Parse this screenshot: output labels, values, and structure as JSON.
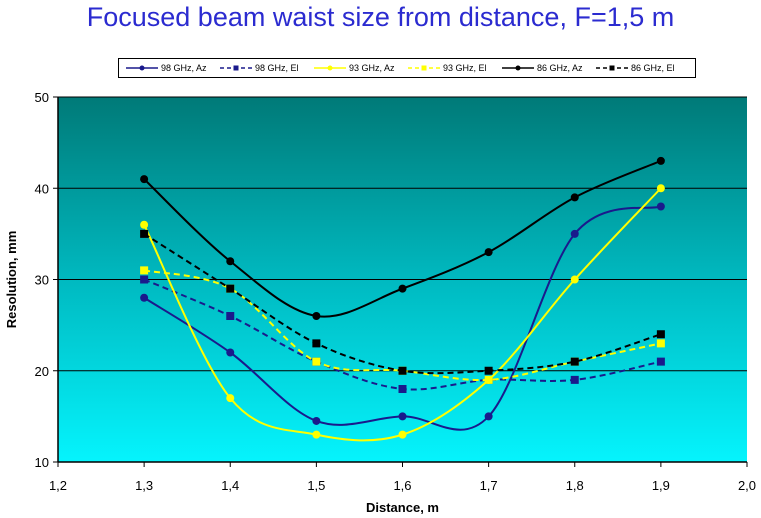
{
  "chart_data": {
    "type": "line",
    "title": "Focused beam waist size from distance, F=1,5 m",
    "xlabel": "Distance, m",
    "ylabel": "Resolution, mm",
    "xlim": [
      1.2,
      2.0
    ],
    "ylim": [
      10,
      50
    ],
    "x_ticks": [
      "1,2",
      "1,3",
      "1,4",
      "1,5",
      "1,6",
      "1,7",
      "1,8",
      "1,9",
      "2,0"
    ],
    "y_ticks": [
      "10",
      "20",
      "30",
      "40",
      "50"
    ],
    "x": [
      1.3,
      1.4,
      1.5,
      1.6,
      1.7,
      1.8,
      1.9
    ],
    "grid": "horizontal",
    "legend_position": "top",
    "background": "gradient teal to cyan",
    "series": [
      {
        "name": "98 GHz, Az",
        "color": "#1a1a8c",
        "dash": "solid",
        "marker": "circle",
        "values": [
          28,
          22,
          14.5,
          15,
          15,
          35,
          38
        ]
      },
      {
        "name": "98 GHz, El",
        "color": "#1a1a8c",
        "dash": "dashed",
        "marker": "square",
        "values": [
          30,
          26,
          21,
          18,
          19,
          19,
          21
        ]
      },
      {
        "name": "93 GHz, Az",
        "color": "#ffff00",
        "dash": "solid",
        "marker": "circle",
        "values": [
          36,
          17,
          13,
          13,
          19,
          30,
          40
        ]
      },
      {
        "name": "93 GHz, El",
        "color": "#ffff00",
        "dash": "dashed",
        "marker": "square",
        "values": [
          31,
          29,
          21,
          20,
          19,
          21,
          23
        ]
      },
      {
        "name": "86 GHz, Az",
        "color": "#000000",
        "dash": "solid",
        "marker": "circle",
        "values": [
          41,
          32,
          26,
          29,
          33,
          39,
          43
        ]
      },
      {
        "name": "86 GHz, El",
        "color": "#000000",
        "dash": "dashed",
        "marker": "square",
        "values": [
          35,
          29,
          23,
          20,
          20,
          21,
          24
        ]
      }
    ]
  }
}
